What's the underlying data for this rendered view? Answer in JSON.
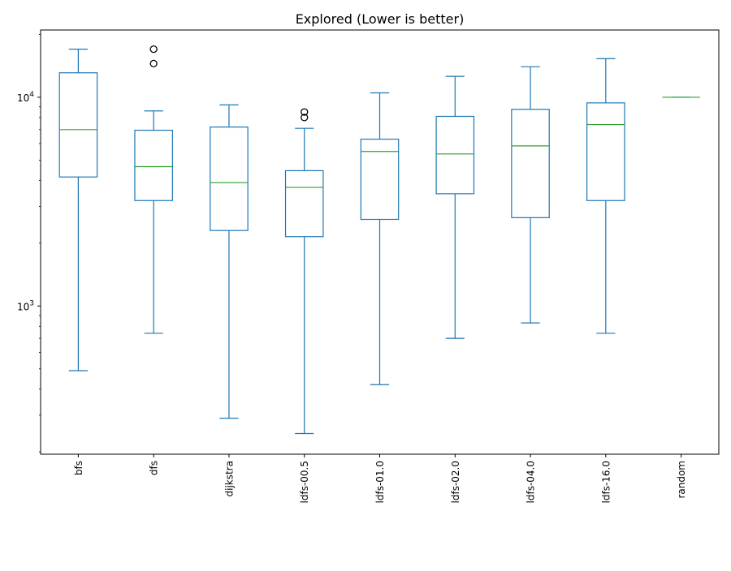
{
  "chart_data": {
    "type": "box",
    "title": "Explored (Lower is better)",
    "xlabel": "",
    "ylabel": "",
    "yscale": "log",
    "ylim": [
      195,
      21000
    ],
    "grid": false,
    "legend": "none",
    "y_major_ticks": [
      {
        "value": 1000,
        "base": "10",
        "exp": "3"
      },
      {
        "value": 10000,
        "base": "10",
        "exp": "4"
      }
    ],
    "categories": [
      "bfs",
      "dfs",
      "dijkstra",
      "ldfs-00.5",
      "ldfs-01.0",
      "ldfs-02.0",
      "ldfs-04.0",
      "ldfs-16.0",
      "random"
    ],
    "boxes": [
      {
        "label": "bfs",
        "whislo": 490,
        "q1": 4150,
        "med": 7000,
        "q3": 13100,
        "whishi": 17000,
        "fliers": []
      },
      {
        "label": "dfs",
        "whislo": 740,
        "q1": 3200,
        "med": 4650,
        "q3": 6950,
        "whishi": 8600,
        "fliers": [
          14500,
          17000
        ]
      },
      {
        "label": "dijkstra",
        "whislo": 290,
        "q1": 2300,
        "med": 3900,
        "q3": 7200,
        "whishi": 9200,
        "fliers": []
      },
      {
        "label": "ldfs-00.5",
        "whislo": 245,
        "q1": 2150,
        "med": 3700,
        "q3": 4450,
        "whishi": 7100,
        "fliers": [
          8000,
          8500
        ]
      },
      {
        "label": "ldfs-01.0",
        "whislo": 420,
        "q1": 2600,
        "med": 5500,
        "q3": 6300,
        "whishi": 10500,
        "fliers": []
      },
      {
        "label": "ldfs-02.0",
        "whislo": 700,
        "q1": 3450,
        "med": 5350,
        "q3": 8100,
        "whishi": 12600,
        "fliers": []
      },
      {
        "label": "ldfs-04.0",
        "whislo": 830,
        "q1": 2650,
        "med": 5850,
        "q3": 8750,
        "whishi": 14000,
        "fliers": []
      },
      {
        "label": "ldfs-16.0",
        "whislo": 740,
        "q1": 3200,
        "med": 7400,
        "q3": 9400,
        "whishi": 15300,
        "fliers": []
      },
      {
        "label": "random",
        "whislo": 10000,
        "q1": 10000,
        "med": 10000,
        "q3": 10000,
        "whishi": 10000,
        "fliers": []
      }
    ],
    "colors": {
      "box": "#1f77b4",
      "median": "#2ca02c",
      "flier": "#000000",
      "axes": "#000000"
    }
  }
}
